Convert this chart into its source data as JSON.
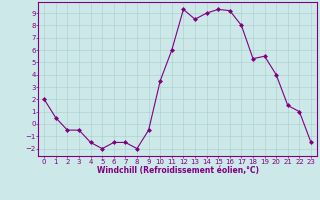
{
  "x": [
    0,
    1,
    2,
    3,
    4,
    5,
    6,
    7,
    8,
    9,
    10,
    11,
    12,
    13,
    14,
    15,
    16,
    17,
    18,
    19,
    20,
    21,
    22,
    23
  ],
  "y": [
    2,
    0.5,
    -0.5,
    -0.5,
    -1.5,
    -2,
    -1.5,
    -1.5,
    -2,
    -0.5,
    3.5,
    6,
    9.3,
    8.5,
    9,
    9.3,
    9.2,
    8,
    5.3,
    5.5,
    4,
    1.5,
    1,
    -1.5
  ],
  "line_color": "#800080",
  "marker": "D",
  "marker_size": 2,
  "bg_color": "#cce8e8",
  "grid_color": "#aacccc",
  "xlabel": "Windchill (Refroidissement éolien,°C)",
  "ylim": [
    -2.6,
    9.9
  ],
  "xlim": [
    -0.5,
    23.5
  ],
  "yticks": [
    -2,
    -1,
    0,
    1,
    2,
    3,
    4,
    5,
    6,
    7,
    8,
    9
  ],
  "xticks": [
    0,
    1,
    2,
    3,
    4,
    5,
    6,
    7,
    8,
    9,
    10,
    11,
    12,
    13,
    14,
    15,
    16,
    17,
    18,
    19,
    20,
    21,
    22,
    23
  ],
  "tick_color": "#800080",
  "label_color": "#800080",
  "spine_color": "#800080",
  "tick_fontsize": 5.0,
  "xlabel_fontsize": 5.5
}
